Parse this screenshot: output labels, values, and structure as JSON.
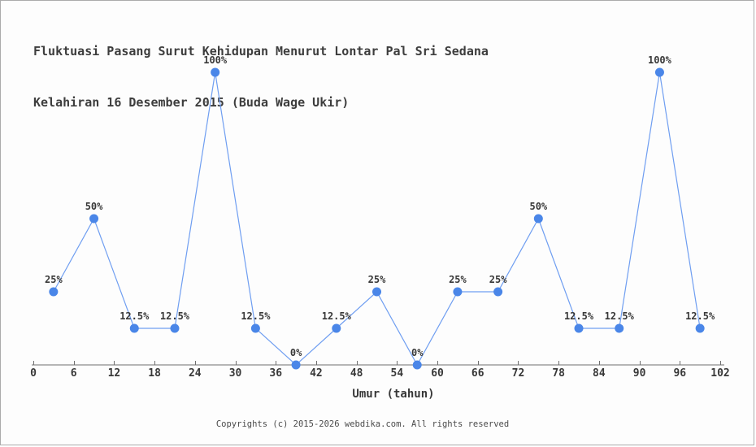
{
  "page": {
    "background": "#fdfdfd",
    "border_color": "#ababab"
  },
  "chart_data": {
    "type": "line",
    "title": "Fluktuasi Pasang Surut Kehidupan Menurut Lontar Pal Sri Sedana Kelahiran 16 Desember 2015 (Buda Wage Ukir)",
    "title_line1": "Fluktuasi Pasang Surut Kehidupan Menurut Lontar Pal Sri Sedana",
    "title_line2": "Kelahiran 16 Desember 2015 (Buda Wage Ukir)",
    "xlabel": "Umur (tahun)",
    "ylabel": "",
    "x": [
      3,
      9,
      15,
      21,
      27,
      33,
      39,
      45,
      51,
      57,
      63,
      69,
      75,
      81,
      87,
      93,
      99
    ],
    "values": [
      25,
      50,
      12.5,
      12.5,
      100,
      12.5,
      0,
      12.5,
      25,
      0,
      25,
      25,
      50,
      12.5,
      12.5,
      100,
      12.5
    ],
    "point_labels": [
      "25%",
      "50%",
      "12.5%",
      "12.5%",
      "100%",
      "12.5%",
      "0%",
      "12.5%",
      "25%",
      "0%",
      "25%",
      "25%",
      "50%",
      "12.5%",
      "12.5%",
      "100%",
      "12.5%"
    ],
    "x_ticks": [
      0,
      6,
      12,
      18,
      24,
      30,
      36,
      42,
      48,
      54,
      60,
      66,
      72,
      78,
      84,
      90,
      96,
      102
    ],
    "xlim": [
      0,
      102
    ],
    "ylim": [
      0,
      100
    ],
    "grid": false,
    "legend_position": "none",
    "colors": {
      "line": "#6f9ef1",
      "marker": "#4a86e8",
      "axis": "#6e6e6e",
      "label_text": "#383838",
      "tick_text": "#383838"
    }
  },
  "footer": {
    "copyright": "Copyrights (c) 2015-2026 webdika.com. All rights reserved"
  }
}
